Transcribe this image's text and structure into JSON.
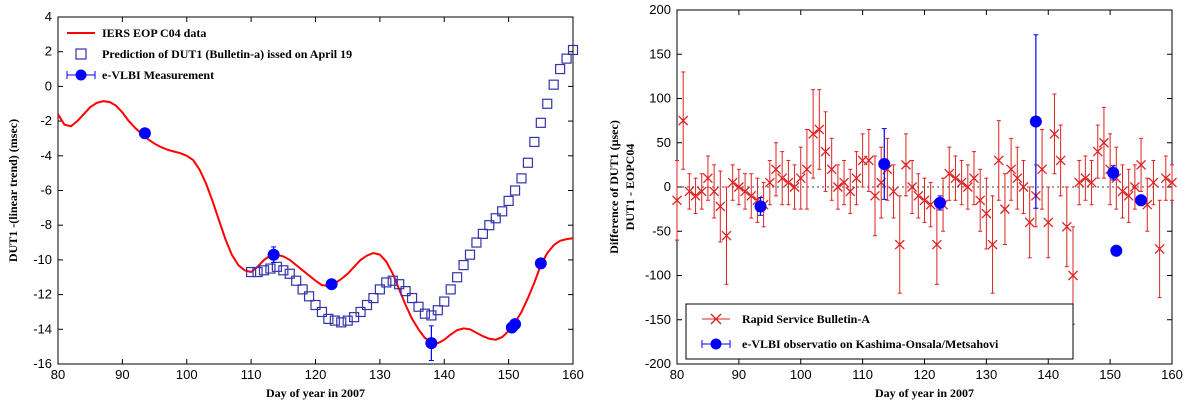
{
  "chart_data": [
    {
      "type": "line",
      "xlabel": "Day of year in  2007",
      "ylabel": "DUT1 -(linear trend) (msec)",
      "xlim": [
        80,
        160
      ],
      "ylim": [
        -16,
        4
      ],
      "xticks": [
        80,
        90,
        100,
        110,
        120,
        130,
        140,
        150,
        160
      ],
      "yticks": [
        -16,
        -14,
        -12,
        -10,
        -8,
        -6,
        -4,
        -2,
        0,
        2,
        4
      ],
      "legend_position": "top-left",
      "colors": {
        "c04": "#ff0000",
        "prediction": "#3333aa",
        "evlbi": "#0000ff"
      },
      "series": [
        {
          "name": "IERS EOP C04 data",
          "style": "line",
          "x": [
            80,
            81,
            82,
            83,
            84,
            85,
            86,
            87,
            88,
            89,
            90,
            91,
            92,
            93,
            94,
            95,
            96,
            97,
            98,
            99,
            100,
            101,
            102,
            103,
            104,
            105,
            106,
            107,
            108,
            109,
            110,
            111,
            112,
            113,
            114,
            115,
            116,
            117,
            118,
            119,
            120,
            121,
            122,
            123,
            124,
            125,
            126,
            127,
            128,
            129,
            130,
            131,
            132,
            133,
            134,
            135,
            136,
            137,
            138,
            139,
            140,
            141,
            142,
            143,
            144,
            145,
            146,
            147,
            148,
            149,
            150,
            151,
            152,
            153,
            154,
            155,
            156,
            157,
            158,
            159,
            160
          ],
          "y": [
            -1.6,
            -2.2,
            -2.3,
            -2.0,
            -1.6,
            -1.2,
            -0.95,
            -0.85,
            -0.9,
            -1.1,
            -1.5,
            -2.0,
            -2.4,
            -2.75,
            -3.05,
            -3.3,
            -3.5,
            -3.65,
            -3.75,
            -3.85,
            -4.0,
            -4.25,
            -4.8,
            -5.6,
            -6.6,
            -7.7,
            -8.8,
            -9.7,
            -10.3,
            -10.6,
            -10.7,
            -10.4,
            -10.0,
            -9.75,
            -9.7,
            -9.8,
            -10.0,
            -10.3,
            -10.6,
            -10.9,
            -11.2,
            -11.45,
            -11.5,
            -11.35,
            -11.1,
            -10.8,
            -10.4,
            -10.0,
            -9.75,
            -9.6,
            -9.7,
            -10.1,
            -10.8,
            -11.7,
            -12.6,
            -13.4,
            -14.0,
            -14.5,
            -14.75,
            -14.8,
            -14.6,
            -14.3,
            -14.05,
            -13.95,
            -14.0,
            -14.2,
            -14.4,
            -14.55,
            -14.6,
            -14.45,
            -14.1,
            -13.6,
            -13.0,
            -12.2,
            -11.3,
            -10.3,
            -9.6,
            -9.15,
            -8.9,
            -8.8,
            -8.75
          ]
        },
        {
          "name": "Prediction of DUT1 (Bulletin-a) issed on April 19",
          "style": "open-square",
          "x": [
            110,
            111,
            112,
            113,
            114,
            115,
            116,
            117,
            118,
            119,
            120,
            121,
            122,
            123,
            124,
            125,
            126,
            127,
            128,
            129,
            130,
            131,
            132,
            133,
            134,
            135,
            136,
            137,
            138,
            139,
            140,
            141,
            142,
            143,
            144,
            145,
            146,
            147,
            148,
            149,
            150,
            151,
            152,
            153,
            154,
            155,
            156,
            157,
            158,
            159,
            160
          ],
          "y": [
            -10.7,
            -10.7,
            -10.6,
            -10.5,
            -10.4,
            -10.6,
            -10.8,
            -11.2,
            -11.7,
            -12.1,
            -12.6,
            -13.0,
            -13.4,
            -13.5,
            -13.6,
            -13.5,
            -13.3,
            -13.0,
            -12.6,
            -12.2,
            -11.7,
            -11.3,
            -11.2,
            -11.4,
            -11.8,
            -12.2,
            -12.7,
            -13.1,
            -13.2,
            -12.9,
            -12.4,
            -11.7,
            -11.0,
            -10.3,
            -9.7,
            -9.0,
            -8.5,
            -8.0,
            -7.6,
            -7.2,
            -6.6,
            -6.0,
            -5.3,
            -4.4,
            -3.2,
            -2.1,
            -1.0,
            0.1,
            1.0,
            1.6,
            2.1
          ]
        },
        {
          "name": "e-VLBI Measurement",
          "style": "filled-circle-errorbar",
          "x": [
            93.5,
            113.5,
            122.5,
            138.0,
            150.5,
            151.0,
            155.0
          ],
          "y": [
            -2.7,
            -9.7,
            -11.4,
            -14.8,
            -13.9,
            -13.7,
            -10.2
          ],
          "err": [
            0.1,
            0.45,
            0.15,
            1.0,
            0.15,
            0.1,
            0.15
          ]
        }
      ]
    },
    {
      "type": "scatter",
      "xlabel": "Day of year in  2007",
      "ylabel": "Difference of DUT1 (µsec)",
      "ylabel2": "DUT1 - EOPC04",
      "xlim": [
        80,
        160
      ],
      "ylim": [
        -200,
        200
      ],
      "xticks": [
        80,
        90,
        100,
        110,
        120,
        130,
        140,
        150,
        160
      ],
      "yticks": [
        -200,
        -150,
        -100,
        -50,
        0,
        50,
        100,
        150,
        200
      ],
      "zero_line": "dotted",
      "legend_position": "bottom-left",
      "colors": {
        "bulletin": "#dd2222",
        "evlbi": "#0000ff"
      },
      "series": [
        {
          "name": "Rapid Service Bulletin-A",
          "style": "x-errorbar",
          "x": [
            80,
            81,
            82,
            83,
            84,
            85,
            86,
            87,
            88,
            89,
            90,
            91,
            92,
            93,
            94,
            95,
            96,
            97,
            98,
            99,
            100,
            101,
            102,
            103,
            104,
            105,
            106,
            107,
            108,
            109,
            110,
            111,
            112,
            113,
            114,
            115,
            116,
            117,
            118,
            119,
            120,
            121,
            122,
            123,
            124,
            125,
            126,
            127,
            128,
            129,
            130,
            131,
            132,
            133,
            134,
            135,
            136,
            137,
            138,
            139,
            140,
            141,
            142,
            143,
            144,
            145,
            146,
            147,
            148,
            149,
            150,
            151,
            152,
            153,
            154,
            155,
            156,
            157,
            158,
            159,
            160
          ],
          "y": [
            -15,
            75,
            -5,
            -10,
            -5,
            10,
            -5,
            -22,
            -55,
            5,
            0,
            -5,
            -10,
            -15,
            -20,
            5,
            20,
            10,
            5,
            0,
            10,
            20,
            60,
            65,
            40,
            20,
            0,
            5,
            -5,
            10,
            30,
            30,
            -10,
            5,
            20,
            -5,
            -65,
            25,
            0,
            -10,
            -15,
            -20,
            -65,
            -20,
            15,
            10,
            5,
            0,
            10,
            -15,
            -30,
            -65,
            30,
            -25,
            20,
            10,
            0,
            -40,
            -10,
            20,
            -40,
            60,
            30,
            -45,
            -100,
            5,
            10,
            5,
            40,
            50,
            20,
            10,
            -5,
            -10,
            0,
            25,
            -20,
            5,
            -70,
            10,
            5
          ],
          "err": [
            45,
            55,
            20,
            20,
            20,
            25,
            30,
            40,
            55,
            20,
            20,
            20,
            25,
            25,
            25,
            25,
            30,
            30,
            25,
            25,
            35,
            45,
            50,
            45,
            45,
            35,
            25,
            25,
            25,
            30,
            30,
            35,
            45,
            40,
            35,
            30,
            55,
            35,
            30,
            25,
            25,
            25,
            45,
            30,
            30,
            25,
            25,
            25,
            30,
            35,
            40,
            55,
            45,
            40,
            35,
            35,
            30,
            40,
            35,
            45,
            40,
            45,
            40,
            45,
            55,
            25,
            25,
            25,
            30,
            40,
            40,
            35,
            30,
            30,
            25,
            30,
            30,
            25,
            55,
            25,
            20
          ]
        },
        {
          "name": "e-VLBI observatio on Kashima-Onsala/Metsahovi",
          "style": "filled-circle-errorbar",
          "x": [
            93.5,
            113.5,
            122.5,
            138.0,
            150.5,
            151.0,
            155.0
          ],
          "y": [
            -22,
            26,
            -18,
            74,
            16,
            -72,
            -15
          ],
          "err": [
            10,
            40,
            8,
            98,
            8,
            6,
            6
          ]
        }
      ]
    }
  ]
}
